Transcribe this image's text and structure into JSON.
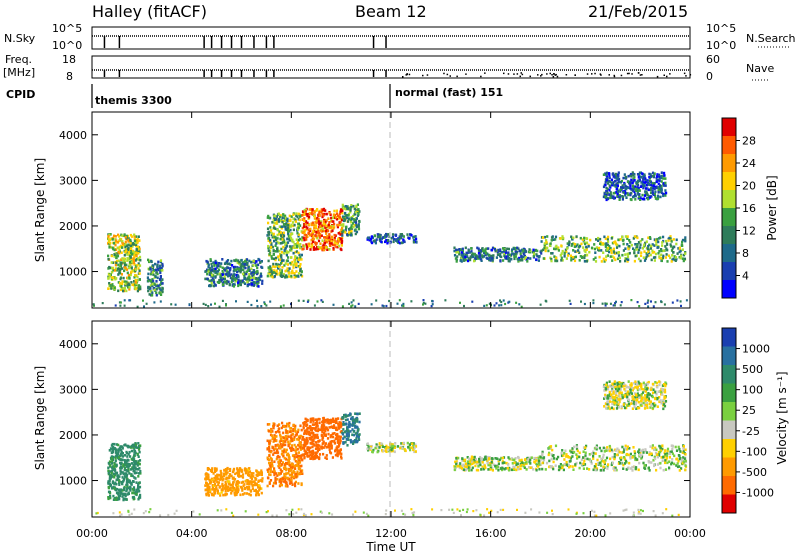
{
  "header": {
    "radar": "Halley (fitACF)",
    "beam": "Beam 12",
    "date": "21/Feb/2015"
  },
  "status_panels": {
    "nsky": {
      "label": "N.Sky",
      "ticks": [
        "10^5",
        "10^0"
      ]
    },
    "nsearch": {
      "label": "N.Search",
      "ticks": [
        "10^5",
        "10^0"
      ]
    },
    "freq": {
      "label_line1": "Freq.",
      "label_line2": "[MHz]",
      "ticks": [
        "18",
        "8"
      ]
    },
    "nave": {
      "label": "Nave",
      "ticks": [
        "60",
        "0"
      ]
    },
    "cpid": {
      "label": "CPID",
      "programs": [
        "themis 3300",
        "normal (fast) 151"
      ]
    }
  },
  "colorscales": {
    "power": {
      "label": "Power [dB]",
      "ticks": [
        "28",
        "24",
        "20",
        "16",
        "12",
        "8",
        "4"
      ],
      "colors": [
        "#e00000",
        "#ff5a00",
        "#ff9a00",
        "#ffd000",
        "#b0e030",
        "#3aa040",
        "#2e7c5a",
        "#1e6a8a",
        "#1a3fb0",
        "#0000ff"
      ]
    },
    "velocity": {
      "label": "Velocity [m s⁻¹]",
      "ticks": [
        "1000",
        "500",
        "100",
        "25",
        "-25",
        "-100",
        "-500",
        "-1000"
      ],
      "colors": [
        "#1a3fb0",
        "#2870a0",
        "#2e8a6a",
        "#3aa040",
        "#7ad040",
        "#c8c8c0",
        "#ffd000",
        "#ff9a00",
        "#ff6a00",
        "#e00000"
      ]
    }
  },
  "axes": {
    "ylabel": "Slant Range [km]",
    "yticks": [
      "4000",
      "3000",
      "2000",
      "1000"
    ],
    "xticks": [
      "00:00",
      "04:00",
      "08:00",
      "12:00",
      "16:00",
      "20:00",
      "00:00"
    ],
    "xlabel": "Time UT"
  },
  "chart_data": [
    {
      "type": "heatmap",
      "panel": "power",
      "x_unit": "hours UT",
      "y_unit": "km",
      "xlim": [
        0,
        24
      ],
      "ylim": [
        200,
        4500
      ],
      "zlim": [
        0,
        30
      ],
      "cmap_label": "Power [dB]",
      "regions": [
        {
          "x": [
            0.6,
            1.9
          ],
          "y": [
            600,
            1850
          ],
          "z": 16
        },
        {
          "x": [
            2.2,
            2.8
          ],
          "y": [
            500,
            1300
          ],
          "z": 10
        },
        {
          "x": [
            4.5,
            6.8
          ],
          "y": [
            700,
            1300
          ],
          "z": 9
        },
        {
          "x": [
            7.0,
            8.4
          ],
          "y": [
            900,
            2300
          ],
          "z": 14
        },
        {
          "x": [
            8.4,
            10.0
          ],
          "y": [
            1500,
            2400
          ],
          "z": 24
        },
        {
          "x": [
            10.0,
            10.7
          ],
          "y": [
            1800,
            2500
          ],
          "z": 12
        },
        {
          "x": [
            11.0,
            13.0
          ],
          "y": [
            1650,
            1850
          ],
          "z": 6
        },
        {
          "x": [
            14.5,
            18.0
          ],
          "y": [
            1250,
            1550
          ],
          "z": 9
        },
        {
          "x": [
            18.0,
            23.8
          ],
          "y": [
            1250,
            1800
          ],
          "z": 14
        },
        {
          "x": [
            20.5,
            23.0
          ],
          "y": [
            2600,
            3200
          ],
          "z": 7
        }
      ]
    },
    {
      "type": "heatmap",
      "panel": "velocity",
      "x_unit": "hours UT",
      "y_unit": "km",
      "xlim": [
        0,
        24
      ],
      "ylim": [
        200,
        4500
      ],
      "zlim": [
        -1000,
        1000
      ],
      "cmap_label": "Velocity [m s⁻¹]",
      "regions": [
        {
          "x": [
            0.6,
            1.9
          ],
          "y": [
            600,
            1850
          ],
          "z": 150
        },
        {
          "x": [
            4.5,
            6.8
          ],
          "y": [
            700,
            1300
          ],
          "z": -200
        },
        {
          "x": [
            7.0,
            8.4
          ],
          "y": [
            900,
            2300
          ],
          "z": -300
        },
        {
          "x": [
            8.4,
            10.0
          ],
          "y": [
            1500,
            2400
          ],
          "z": -400
        },
        {
          "x": [
            10.0,
            10.7
          ],
          "y": [
            1800,
            2500
          ],
          "z": 300
        },
        {
          "x": [
            11.0,
            13.0
          ],
          "y": [
            1650,
            1850
          ],
          "z": 0
        },
        {
          "x": [
            14.5,
            18.0
          ],
          "y": [
            1250,
            1550
          ],
          "z": 0
        },
        {
          "x": [
            18.0,
            23.8
          ],
          "y": [
            1250,
            1800
          ],
          "z": 10
        },
        {
          "x": [
            20.5,
            23.0
          ],
          "y": [
            2600,
            3200
          ],
          "z": 0
        }
      ]
    }
  ]
}
